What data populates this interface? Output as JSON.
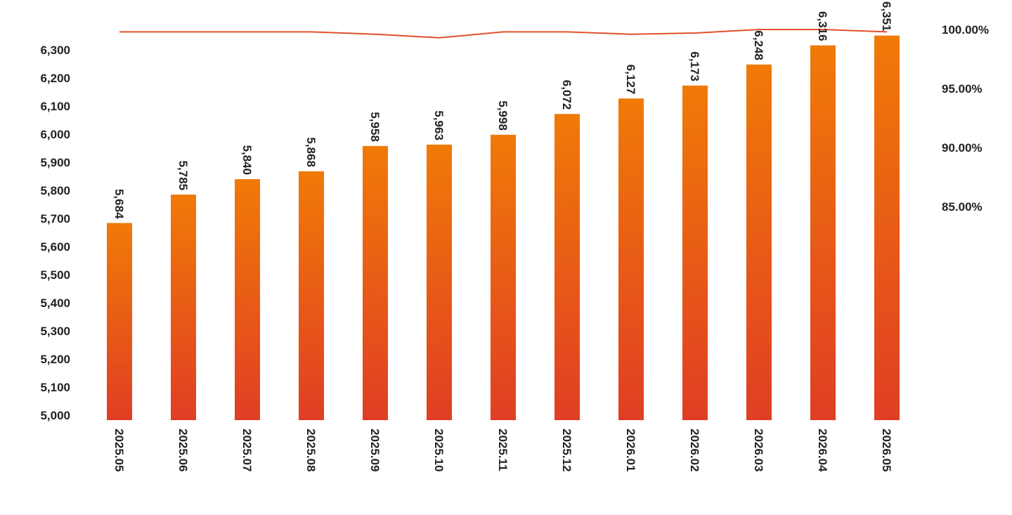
{
  "chart_data": {
    "type": "bar",
    "categories": [
      "2025.05",
      "2025.06",
      "2025.07",
      "2025.08",
      "2025.09",
      "2025.10",
      "2025.11",
      "2025.12",
      "2026.01",
      "2026.02",
      "2026.03",
      "2026.04",
      "2026.05"
    ],
    "series": [
      {
        "type": "bar",
        "axis": "left",
        "values": [
          5684,
          5785,
          5840,
          5868,
          5958,
          5963,
          5998,
          6072,
          6127,
          6173,
          6248,
          6316,
          6351
        ],
        "data_labels": [
          "5,684",
          "5,785",
          "5,840",
          "5,868",
          "5,958",
          "5,963",
          "5,998",
          "6,072",
          "6,127",
          "6,173",
          "6,248",
          "6,316",
          "6,351"
        ],
        "color_top": "#f07a08",
        "color_bottom": "#e03e24"
      },
      {
        "type": "line",
        "axis": "right",
        "values": [
          99.8,
          99.8,
          99.8,
          99.8,
          99.6,
          99.3,
          99.8,
          99.8,
          99.6,
          99.7,
          100.0,
          100.0,
          99.8
        ],
        "color": "#e3502b"
      }
    ],
    "y_left": {
      "min": 5000,
      "max": 6300,
      "ticks": [
        5000,
        5100,
        5200,
        5300,
        5400,
        5500,
        5600,
        5700,
        5800,
        5900,
        6000,
        6100,
        6200,
        6300
      ],
      "tick_labels": [
        "5,000",
        "5,100",
        "5,200",
        "5,300",
        "5,400",
        "5,500",
        "5,600",
        "5,700",
        "5,800",
        "5,900",
        "6,000",
        "6,100",
        "6,200",
        "6,300"
      ]
    },
    "y_right": {
      "ticks": [
        85,
        90,
        95,
        100
      ],
      "tick_labels": [
        "85.00%",
        "90.00%",
        "95.00%",
        "100.00%"
      ]
    },
    "grid": false,
    "legend": "none",
    "title": "",
    "xlabel": "",
    "ylabel": ""
  }
}
